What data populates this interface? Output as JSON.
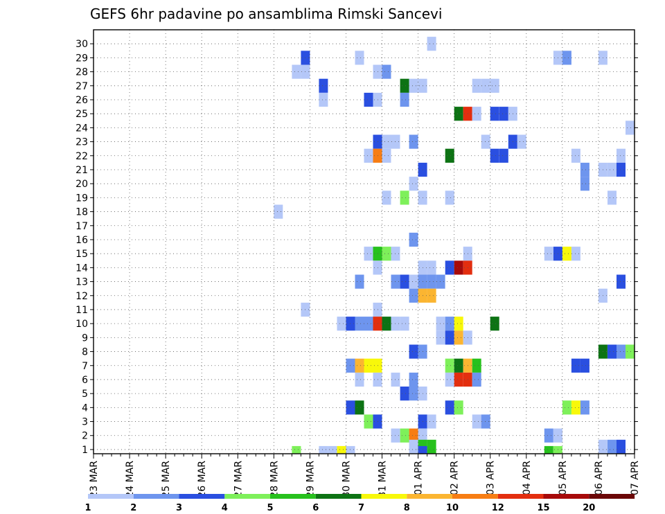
{
  "chart_data": {
    "type": "heatmap",
    "title": "GEFS 6hr padavine po ansamblima Rimski Sancevi",
    "xlabel": "",
    "ylabel": "",
    "x_tick_labels": [
      "23 MAR",
      "24 MAR",
      "25 MAR",
      "26 MAR",
      "27 MAR",
      "28 MAR",
      "29 MAR",
      "30 MAR",
      "31 MAR",
      "01 APR",
      "02 APR",
      "03 APR",
      "04 APR",
      "05 APR",
      "06 APR",
      "07 APR"
    ],
    "x_steps_per_day": 4,
    "x_total_steps": 60,
    "y_tick_labels": [
      "1",
      "2",
      "3",
      "4",
      "5",
      "6",
      "7",
      "8",
      "9",
      "10",
      "11",
      "12",
      "13",
      "14",
      "15",
      "16",
      "17",
      "18",
      "19",
      "20",
      "21",
      "22",
      "23",
      "24",
      "25",
      "26",
      "27",
      "28",
      "29",
      "30"
    ],
    "ylim": [
      0,
      30
    ],
    "grid": true,
    "colorbar": {
      "placement": "bottom",
      "labels": [
        "1",
        "2",
        "3",
        "4",
        "5",
        "6",
        "7",
        "8",
        "10",
        "12",
        "15",
        "20"
      ],
      "colors": [
        "#b4c7f8",
        "#6e95ee",
        "#2a4fe0",
        "#7ef05a",
        "#27c11d",
        "#0d7314",
        "#f8f80a",
        "#fbb531",
        "#f77d13",
        "#e32e0f",
        "#a70a0a",
        "#6b0707"
      ]
    },
    "cells": [
      [
        29,
        30,
        0
      ],
      [
        33,
        30,
        0
      ],
      [
        34,
        30,
        0
      ],
      [
        35,
        30,
        1
      ],
      [
        26,
        30,
        0
      ],
      [
        27,
        30,
        3
      ],
      [
        22,
        30,
        0
      ],
      [
        23,
        30,
        0
      ],
      [
        24,
        30,
        0
      ],
      [
        29,
        29,
        0
      ],
      [
        27,
        29,
        0
      ],
      [
        25,
        29,
        6
      ],
      [
        22,
        29,
        0
      ],
      [
        21,
        29,
        0
      ],
      [
        22,
        28,
        1
      ],
      [
        21,
        28,
        0
      ],
      [
        26,
        28,
        1
      ],
      [
        27,
        28,
        1
      ],
      [
        29,
        28,
        0
      ],
      [
        44,
        27,
        1
      ],
      [
        43,
        27,
        2
      ],
      [
        37,
        27,
        2
      ],
      [
        38,
        27,
        2
      ],
      [
        39,
        27,
        2
      ],
      [
        49,
        27,
        0
      ],
      [
        48,
        27,
        2
      ],
      [
        35,
        27,
        5
      ],
      [
        34,
        27,
        0
      ],
      [
        25,
        27,
        0
      ],
      [
        22,
        27,
        1
      ],
      [
        24,
        27,
        0
      ],
      [
        24,
        26,
        3
      ],
      [
        23,
        26,
        0
      ],
      [
        27,
        26,
        1
      ],
      [
        23,
        26,
        1
      ],
      [
        21,
        26,
        2
      ],
      [
        20,
        26,
        2
      ],
      [
        19,
        26,
        0
      ],
      [
        17,
        26,
        0
      ],
      [
        19,
        25,
        2
      ],
      [
        18,
        25,
        1
      ],
      [
        16,
        25,
        2
      ],
      [
        15,
        25,
        0
      ],
      [
        15,
        24,
        0
      ],
      [
        16,
        24,
        0
      ],
      [
        17,
        24,
        0
      ],
      [
        18,
        24,
        2
      ],
      [
        19,
        24,
        2
      ],
      [
        20,
        24,
        1
      ],
      [
        52,
        24,
        0
      ],
      [
        51,
        24,
        1
      ],
      [
        47,
        24,
        0
      ],
      [
        46,
        24,
        2
      ],
      [
        45,
        24,
        1
      ],
      [
        44,
        24,
        0
      ],
      [
        43,
        24,
        0
      ],
      [
        41,
        24,
        0
      ],
      [
        58,
        23,
        0
      ],
      [
        58,
        22,
        2
      ],
      [
        59,
        22,
        2
      ],
      [
        54,
        22,
        0
      ],
      [
        52,
        22,
        0
      ],
      [
        47,
        22,
        5
      ],
      [
        46,
        22,
        1
      ],
      [
        45,
        22,
        0
      ],
      [
        44,
        22,
        0
      ],
      [
        42,
        22,
        2
      ],
      [
        41,
        22,
        0
      ],
      [
        40,
        22,
        0
      ],
      [
        29,
        22,
        0
      ],
      [
        35,
        22,
        4
      ],
      [
        31,
        22,
        2
      ],
      [
        56,
        21,
        0
      ],
      [
        57,
        21,
        1
      ],
      [
        53,
        21,
        1
      ],
      [
        52,
        21,
        0
      ],
      [
        46,
        21,
        5
      ],
      [
        45,
        21,
        0
      ],
      [
        44,
        21,
        1
      ],
      [
        42,
        21,
        2
      ],
      [
        41,
        21,
        2
      ],
      [
        39,
        21,
        0
      ],
      [
        38,
        21,
        0
      ],
      [
        37,
        21,
        0
      ],
      [
        34,
        21,
        1
      ],
      [
        33,
        21,
        1
      ],
      [
        32,
        21,
        4
      ],
      [
        31,
        21,
        6
      ],
      [
        29,
        21,
        0
      ],
      [
        28,
        21,
        3
      ],
      [
        27,
        21,
        0
      ],
      [
        26,
        21,
        0
      ],
      [
        25,
        21,
        0
      ],
      [
        24,
        21,
        0
      ],
      [
        23,
        21,
        0
      ],
      [
        22,
        21,
        0
      ],
      [
        21,
        21,
        0
      ],
      [
        20,
        21,
        2
      ],
      [
        19,
        21,
        1
      ],
      [
        18,
        21,
        0
      ],
      [
        17,
        21,
        0
      ],
      [
        16,
        21,
        0
      ],
      [
        15,
        21,
        0
      ],
      [
        14,
        21,
        0
      ],
      [
        13,
        21,
        0
      ],
      [
        12,
        21,
        1
      ],
      [
        11,
        21,
        0
      ],
      [
        10,
        21,
        0
      ],
      [
        9,
        21,
        0
      ],
      [
        8,
        21,
        0
      ],
      [
        7,
        21,
        0
      ],
      [
        6,
        21,
        0
      ],
      [
        5,
        21,
        0
      ],
      [
        4,
        21,
        0
      ],
      [
        3,
        21,
        0
      ],
      [
        2,
        21,
        0
      ],
      [
        1,
        21,
        0
      ],
      [
        0,
        21,
        0
      ]
    ],
    "cells_note_unused": "",
    "cell_list": [
      [
        37,
        29,
        0
      ],
      [
        23,
        28,
        2
      ],
      [
        29,
        28,
        0
      ],
      [
        51,
        28,
        0
      ],
      [
        52,
        28,
        1
      ],
      [
        56,
        28,
        0
      ],
      [
        22,
        27,
        0
      ],
      [
        23,
        27,
        0
      ],
      [
        31,
        27,
        0
      ],
      [
        32,
        27,
        1
      ],
      [
        25,
        26,
        2
      ],
      [
        34,
        26,
        5
      ],
      [
        35,
        26,
        0
      ],
      [
        36,
        26,
        0
      ],
      [
        42,
        26,
        0
      ],
      [
        43,
        26,
        0
      ],
      [
        44,
        26,
        0
      ],
      [
        25,
        25,
        0
      ],
      [
        30,
        25,
        2
      ],
      [
        31,
        25,
        0
      ],
      [
        34,
        25,
        1
      ],
      [
        40,
        24,
        5
      ],
      [
        41,
        24,
        9
      ],
      [
        42,
        24,
        0
      ],
      [
        44,
        24,
        2
      ],
      [
        45,
        24,
        2
      ],
      [
        46,
        24,
        0
      ],
      [
        59,
        23,
        0
      ],
      [
        31,
        22,
        2
      ],
      [
        32,
        22,
        0
      ],
      [
        33,
        22,
        0
      ],
      [
        35,
        22,
        1
      ],
      [
        43,
        22,
        0
      ],
      [
        46,
        22,
        2
      ],
      [
        47,
        22,
        0
      ],
      [
        30,
        21,
        0
      ],
      [
        31,
        21,
        8
      ],
      [
        32,
        21,
        0
      ],
      [
        39,
        21,
        5
      ],
      [
        44,
        21,
        2
      ],
      [
        45,
        21,
        2
      ],
      [
        53,
        21,
        0
      ],
      [
        58,
        21,
        0
      ],
      [
        36,
        20,
        2
      ],
      [
        54,
        20,
        1
      ],
      [
        56,
        20,
        0
      ],
      [
        57,
        20,
        0
      ],
      [
        58,
        20,
        2
      ],
      [
        35,
        19,
        0
      ],
      [
        54,
        19,
        1
      ],
      [
        32,
        18,
        0
      ],
      [
        34,
        18,
        3
      ],
      [
        36,
        18,
        0
      ],
      [
        39,
        18,
        0
      ],
      [
        57,
        18,
        0
      ],
      [
        20,
        17,
        0
      ],
      [
        35,
        15,
        1
      ],
      [
        30,
        14,
        0
      ],
      [
        31,
        14,
        4
      ],
      [
        32,
        14,
        3
      ],
      [
        33,
        14,
        0
      ],
      [
        41,
        14,
        0
      ],
      [
        50,
        14,
        0
      ],
      [
        51,
        14,
        2
      ],
      [
        52,
        14,
        6
      ],
      [
        53,
        14,
        0
      ],
      [
        31,
        13,
        0
      ],
      [
        36,
        13,
        0
      ],
      [
        37,
        13,
        0
      ],
      [
        39,
        13,
        2
      ],
      [
        40,
        13,
        10
      ],
      [
        41,
        13,
        9
      ],
      [
        29,
        12,
        1
      ],
      [
        33,
        12,
        1
      ],
      [
        34,
        12,
        2
      ],
      [
        35,
        12,
        0
      ],
      [
        36,
        12,
        1
      ],
      [
        37,
        12,
        1
      ],
      [
        38,
        12,
        1
      ],
      [
        58,
        12,
        2
      ],
      [
        35,
        11,
        1
      ],
      [
        36,
        11,
        7
      ],
      [
        37,
        11,
        7
      ],
      [
        56,
        11,
        0
      ],
      [
        23,
        10,
        0
      ],
      [
        31,
        10,
        0
      ],
      [
        27,
        9,
        0
      ],
      [
        28,
        9,
        2
      ],
      [
        29,
        9,
        1
      ],
      [
        30,
        9,
        1
      ],
      [
        31,
        9,
        9
      ],
      [
        32,
        9,
        5
      ],
      [
        33,
        9,
        0
      ],
      [
        34,
        9,
        0
      ],
      [
        38,
        9,
        0
      ],
      [
        39,
        9,
        1
      ],
      [
        40,
        9,
        6
      ],
      [
        44,
        9,
        5
      ],
      [
        38,
        8,
        0
      ],
      [
        39,
        8,
        2
      ],
      [
        40,
        8,
        7
      ],
      [
        41,
        8,
        0
      ],
      [
        35,
        7,
        2
      ],
      [
        36,
        7,
        1
      ],
      [
        56,
        7,
        5
      ],
      [
        57,
        7,
        2
      ],
      [
        58,
        7,
        1
      ],
      [
        59,
        7,
        3
      ],
      [
        28,
        6,
        1
      ],
      [
        29,
        6,
        7
      ],
      [
        30,
        6,
        6
      ],
      [
        31,
        6,
        6
      ],
      [
        39,
        6,
        3
      ],
      [
        40,
        6,
        5
      ],
      [
        41,
        6,
        7
      ],
      [
        42,
        6,
        4
      ],
      [
        53,
        6,
        2
      ],
      [
        54,
        6,
        2
      ],
      [
        29,
        5,
        0
      ],
      [
        31,
        5,
        0
      ],
      [
        33,
        5,
        0
      ],
      [
        35,
        5,
        1
      ],
      [
        39,
        5,
        0
      ],
      [
        40,
        5,
        9
      ],
      [
        41,
        5,
        9
      ],
      [
        42,
        5,
        1
      ],
      [
        34,
        4,
        2
      ],
      [
        35,
        4,
        1
      ],
      [
        36,
        4,
        0
      ],
      [
        28,
        3,
        2
      ],
      [
        29,
        3,
        5
      ],
      [
        39,
        3,
        2
      ],
      [
        40,
        3,
        3
      ],
      [
        52,
        3,
        3
      ],
      [
        53,
        3,
        6
      ],
      [
        54,
        3,
        1
      ],
      [
        30,
        2,
        3
      ],
      [
        31,
        2,
        2
      ],
      [
        36,
        2,
        2
      ],
      [
        37,
        2,
        0
      ],
      [
        42,
        2,
        0
      ],
      [
        43,
        2,
        1
      ],
      [
        33,
        1,
        0
      ],
      [
        34,
        1,
        3
      ],
      [
        35,
        1,
        8
      ],
      [
        36,
        1,
        0
      ],
      [
        50,
        1,
        1
      ],
      [
        51,
        1,
        0
      ],
      [
        35,
        0,
        0
      ],
      [
        36,
        0,
        4
      ],
      [
        37,
        0,
        4
      ],
      [
        56,
        0,
        0
      ],
      [
        57,
        0,
        1
      ],
      [
        58,
        0,
        2
      ],
      [
        22,
        -1,
        3
      ],
      [
        25,
        -1,
        0
      ],
      [
        26,
        -1,
        0
      ],
      [
        27,
        -1,
        6
      ],
      [
        28,
        -1,
        0
      ],
      [
        36,
        -1,
        2
      ],
      [
        50,
        -1,
        4
      ],
      [
        51,
        -1,
        3
      ]
    ]
  }
}
